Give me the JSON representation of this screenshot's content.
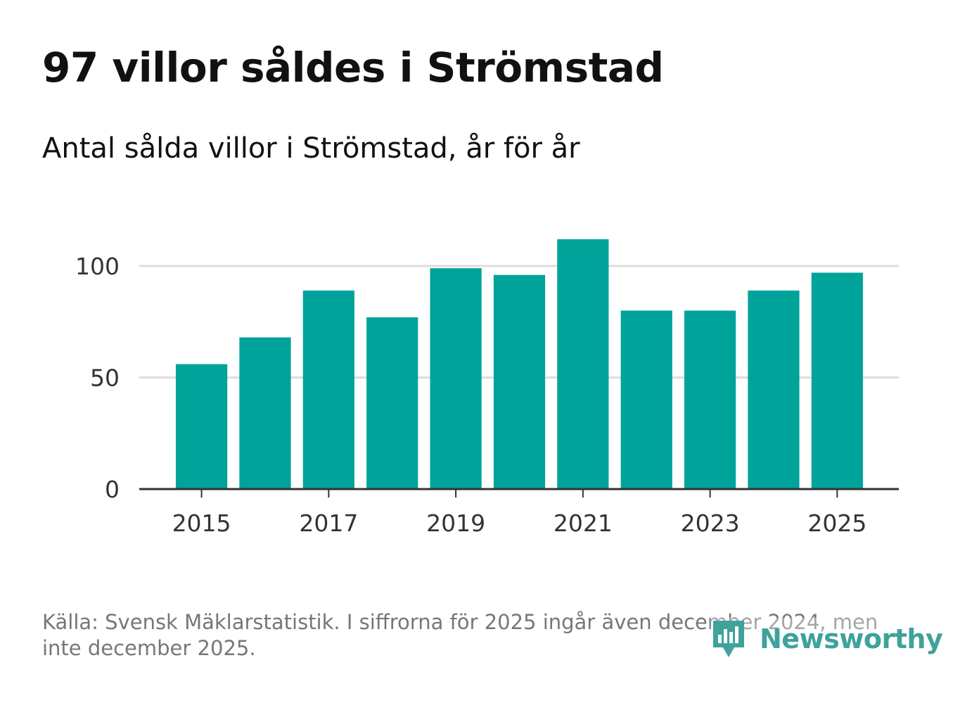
{
  "title": "97 villor såldes i Strömstad",
  "subtitle": "Antal sålda villor i Strömstad, år för år",
  "source": "Källa: Svensk Mäklarstatistik. I siffrorna för 2025 ingår även december 2024, men inte december 2025.",
  "logo": {
    "text": "Newsworthy",
    "icon": "bar-chart-speech-bubble-icon"
  },
  "colors": {
    "bar": "#00a39a",
    "grid": "#dddddd",
    "axis": "#333333",
    "logo": "#3ea39a"
  },
  "chart_data": {
    "type": "bar",
    "title": "Antal sålda villor i Strömstad, år för år",
    "xlabel": "",
    "ylabel": "",
    "categories": [
      "2015",
      "2016",
      "2017",
      "2018",
      "2019",
      "2020",
      "2021",
      "2022",
      "2023",
      "2024",
      "2025"
    ],
    "values": [
      56,
      68,
      89,
      77,
      99,
      96,
      112,
      80,
      80,
      89,
      97
    ],
    "x_tick_labels": [
      "2015",
      "2017",
      "2019",
      "2021",
      "2023",
      "2025"
    ],
    "y_ticks": [
      0,
      50,
      100
    ],
    "ylim": [
      0,
      120
    ],
    "grid": true,
    "legend": "none"
  }
}
